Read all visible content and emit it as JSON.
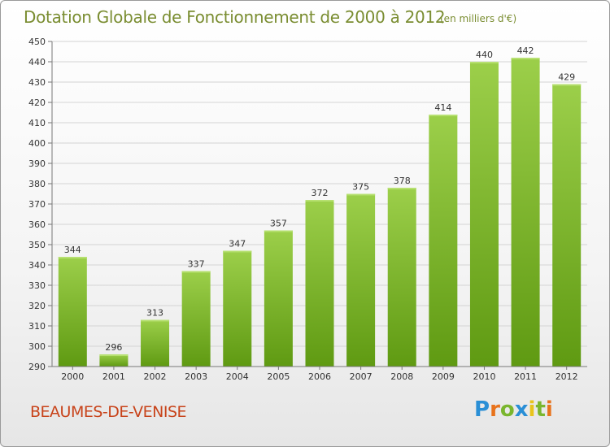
{
  "title": "Dotation Globale de Fonctionnement de 2000 à 2012",
  "subtitle": "(en milliers d'€)",
  "commune": "BEAUMES-DE-VENISE",
  "logo": {
    "letters": [
      "P",
      "r",
      "o",
      "x",
      "i",
      "t",
      "i"
    ],
    "colors": [
      "#2a8fd6",
      "#e8731c",
      "#7ab62e",
      "#2a8fd6",
      "#e8c41c",
      "#7ab62e",
      "#e8731c"
    ]
  },
  "colors": {
    "bar_top": "#9ccf4a",
    "bar_bottom": "#5f9a12",
    "text": "#7a8d31",
    "commune": "#c8431a"
  },
  "chart_data": {
    "type": "bar",
    "categories": [
      "2000",
      "2001",
      "2002",
      "2003",
      "2004",
      "2005",
      "2006",
      "2007",
      "2008",
      "2009",
      "2010",
      "2011",
      "2012"
    ],
    "values": [
      344,
      296,
      313,
      337,
      347,
      357,
      372,
      375,
      378,
      414,
      440,
      442,
      429
    ],
    "data_labels": [
      "344",
      "296",
      "313",
      "337",
      "347",
      "357",
      "372",
      "375",
      "378",
      "414",
      "440",
      "442",
      "429"
    ],
    "yticks": [
      "290",
      "300",
      "310",
      "320",
      "330",
      "340",
      "350",
      "360",
      "370",
      "380",
      "390",
      "400",
      "410",
      "420",
      "430",
      "440",
      "450"
    ],
    "ylim": [
      290,
      450
    ],
    "grid": true,
    "title": "Dotation Globale de Fonctionnement de 2000 à 2012",
    "xlabel": "",
    "ylabel": ""
  }
}
